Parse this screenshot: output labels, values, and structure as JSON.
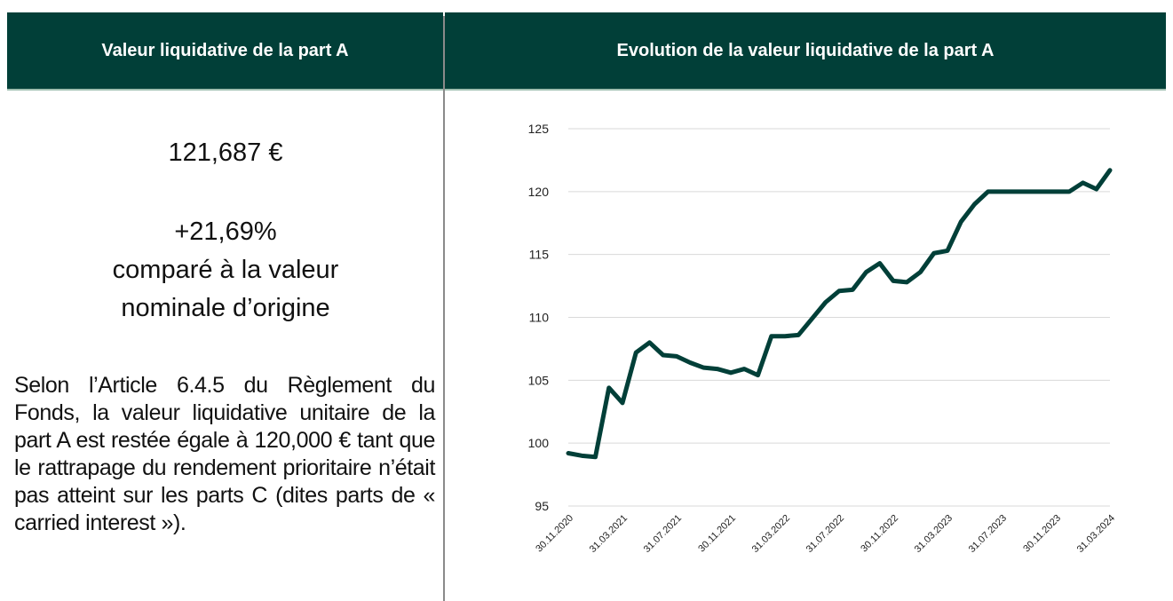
{
  "left": {
    "header": "Valeur liquidative de la part A",
    "nav": "121,687 €",
    "performance": "+21,69%",
    "comparison": [
      "comparé à la valeur",
      "nominale d’origine"
    ],
    "note": "Selon l’Article 6.4.5 du Règlement du Fonds, la valeur liquidative unitaire de la part A est restée égale à 120,000 € tant que le rattrapage du rendement prioritaire n’était pas atteint sur les parts C (dites parts de « carried interest »)."
  },
  "right": {
    "header": "Evolution de la valeur liquidative de la part A"
  },
  "chart_data": {
    "type": "line",
    "color": "#013f38",
    "grid": true,
    "categories": [
      "30.11.2020",
      null,
      null,
      null,
      "31.03.2021",
      null,
      null,
      null,
      "31.07.2021",
      null,
      null,
      null,
      "30.11.2021",
      null,
      null,
      null,
      "31.03.2022",
      null,
      null,
      null,
      "31.07.2022",
      null,
      null,
      null,
      "30.11.2022",
      null,
      null,
      null,
      "31.03.2023",
      null,
      null,
      null,
      "31.07.2023",
      null,
      null,
      null,
      "30.11.2023",
      null,
      null,
      null,
      "31.03.2024"
    ],
    "values": [
      99.2,
      99.0,
      98.9,
      104.4,
      103.2,
      107.2,
      108.0,
      107.0,
      106.9,
      106.4,
      106.0,
      105.9,
      105.6,
      105.9,
      105.4,
      108.5,
      108.5,
      108.6,
      109.9,
      111.2,
      112.1,
      112.2,
      113.6,
      114.3,
      112.9,
      112.8,
      113.6,
      115.1,
      115.3,
      117.6,
      119.0,
      120.0,
      120.0,
      120.0,
      120.0,
      120.0,
      120.0,
      120.0,
      120.7,
      120.2,
      121.7
    ],
    "ylim": [
      95,
      125
    ],
    "yticks": [
      95,
      100,
      105,
      110,
      115,
      120,
      125
    ]
  }
}
